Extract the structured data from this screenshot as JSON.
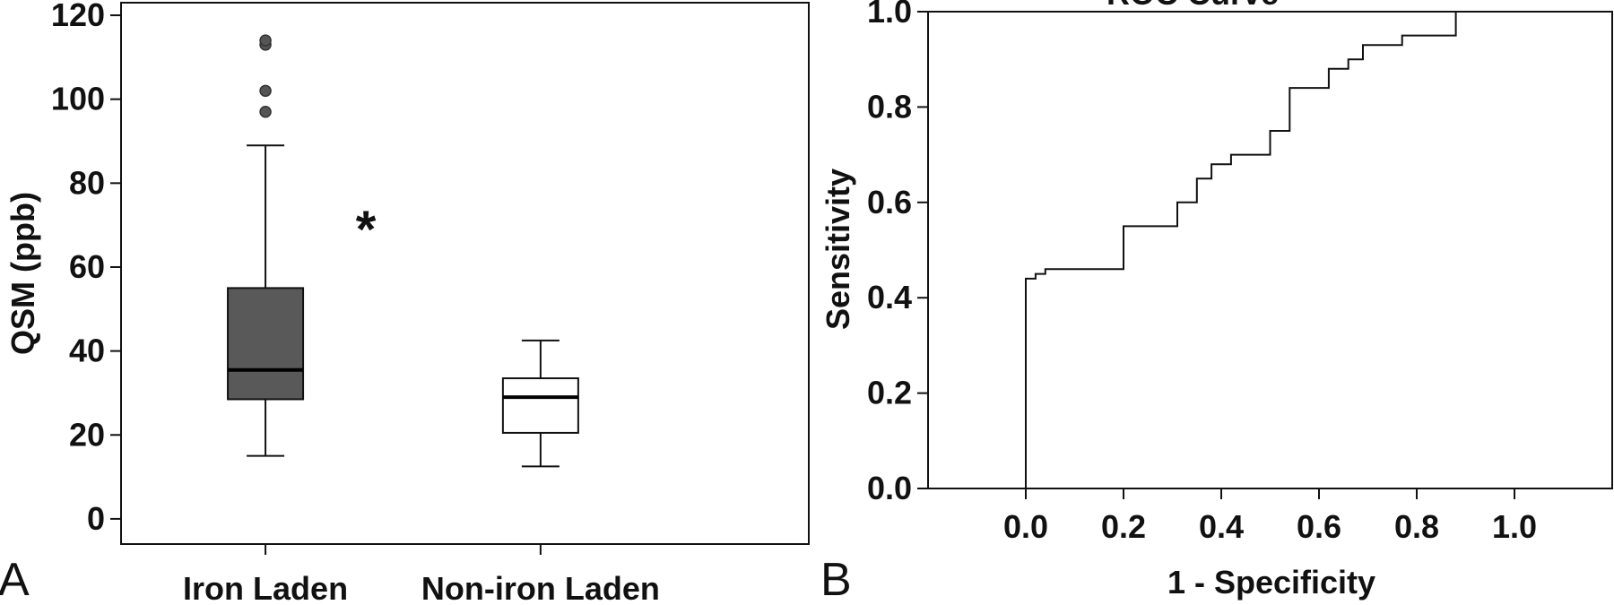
{
  "colors": {
    "iron_box_fill": "#595959",
    "noniron_box_fill": "#ffffff",
    "ink": "#111111",
    "outlier_fill": "#555555"
  },
  "panel_a": {
    "letter": "A",
    "significance_mark": "*"
  },
  "panel_b": {
    "letter": "B",
    "title_fragment": "ROC Curve"
  },
  "chart_data": [
    {
      "type": "box",
      "panel": "A",
      "ylabel": "QSM (ppb)",
      "xlabel": "",
      "ylim": [
        -6,
        123
      ],
      "yticks": [
        0,
        20,
        40,
        60,
        80,
        100,
        120
      ],
      "ytick_labels": [
        "0",
        "20",
        "40",
        "60",
        "80",
        "100",
        "120"
      ],
      "categories": [
        "Iron Laden",
        "Non-iron Laden"
      ],
      "boxes": [
        {
          "category": "Iron Laden",
          "whisker_low": 15,
          "q1": 28.5,
          "median": 35.5,
          "q3": 55,
          "whisker_high": 89,
          "outliers": [
            97,
            102,
            113,
            114
          ]
        },
        {
          "category": "Non-iron Laden",
          "whisker_low": 12.5,
          "q1": 20.5,
          "median": 29,
          "q3": 33.5,
          "whisker_high": 42.5,
          "outliers": []
        }
      ],
      "annotation": "*"
    },
    {
      "type": "line",
      "panel": "B",
      "title": "ROC Curve",
      "xlabel": "1 - Specificity",
      "ylabel": "Sensitivity",
      "xlim": [
        -0.2,
        1.2
      ],
      "ylim": [
        0,
        1
      ],
      "xticks": [
        0.0,
        0.2,
        0.4,
        0.6,
        0.8,
        1.0
      ],
      "xtick_labels": [
        "0.0",
        "0.2",
        "0.4",
        "0.6",
        "0.8",
        "1.0"
      ],
      "yticks": [
        0.0,
        0.2,
        0.4,
        0.6,
        0.8,
        1.0
      ],
      "ytick_labels": [
        "0.0",
        "0.2",
        "0.4",
        "0.6",
        "0.8",
        "1.0"
      ],
      "series": [
        {
          "step_points": [
            [
              0.0,
              0.0
            ],
            [
              0.0,
              0.44
            ],
            [
              0.02,
              0.44
            ],
            [
              0.02,
              0.45
            ],
            [
              0.04,
              0.45
            ],
            [
              0.04,
              0.46
            ],
            [
              0.2,
              0.46
            ],
            [
              0.2,
              0.55
            ],
            [
              0.31,
              0.55
            ],
            [
              0.31,
              0.6
            ],
            [
              0.35,
              0.6
            ],
            [
              0.35,
              0.65
            ],
            [
              0.38,
              0.65
            ],
            [
              0.38,
              0.68
            ],
            [
              0.42,
              0.68
            ],
            [
              0.42,
              0.7
            ],
            [
              0.5,
              0.7
            ],
            [
              0.5,
              0.75
            ],
            [
              0.54,
              0.75
            ],
            [
              0.54,
              0.84
            ],
            [
              0.62,
              0.84
            ],
            [
              0.62,
              0.88
            ],
            [
              0.66,
              0.88
            ],
            [
              0.66,
              0.9
            ],
            [
              0.69,
              0.9
            ],
            [
              0.69,
              0.93
            ],
            [
              0.77,
              0.93
            ],
            [
              0.77,
              0.95
            ],
            [
              0.88,
              0.95
            ],
            [
              0.88,
              1.0
            ],
            [
              1.0,
              1.0
            ]
          ]
        }
      ],
      "grid": false
    }
  ]
}
